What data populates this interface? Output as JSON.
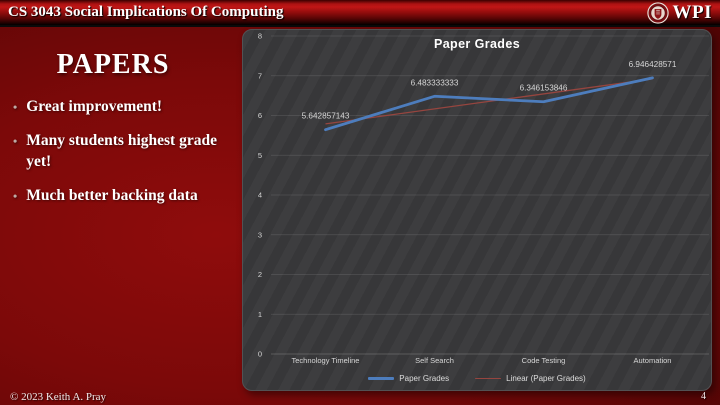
{
  "header": {
    "course_title": "CS 3043 Social Implications Of Computing",
    "logo_text": "WPI"
  },
  "slide": {
    "title": "PAPERS",
    "bullets": [
      "Great improvement!",
      "Many students highest grade yet!",
      "Much better backing data"
    ]
  },
  "chart_data": {
    "type": "line",
    "title": "Paper Grades",
    "categories": [
      "Technology Timeline",
      "Self Search",
      "Code Testing",
      "Automation"
    ],
    "series": [
      {
        "name": "Paper Grades",
        "values": [
          5.642857143,
          6.483333333,
          6.346153846,
          6.946428571
        ],
        "color": "#4d7dbd"
      }
    ],
    "trendline": {
      "name": "Linear (Paper Grades)",
      "color": "#96453f"
    },
    "data_labels": [
      "5.642857143",
      "6.483333333",
      "6.346153846",
      "6.946428571"
    ],
    "ylim": [
      0,
      8
    ],
    "ytick_interval": 1,
    "grid": true,
    "legend_position": "bottom",
    "legend": [
      {
        "label": "Paper Grades"
      },
      {
        "label": "Linear (Paper Grades)"
      }
    ],
    "background_color": "#39393b"
  },
  "footer": {
    "copyright": "© 2023 Keith A. Pray",
    "page_number": "4"
  },
  "colors": {
    "slide_red": "#8f0c0c",
    "header_red": "#c01616",
    "chart_background": "#39393b",
    "series_blue": "#4d7dbd",
    "trendline_red": "#96453f"
  }
}
